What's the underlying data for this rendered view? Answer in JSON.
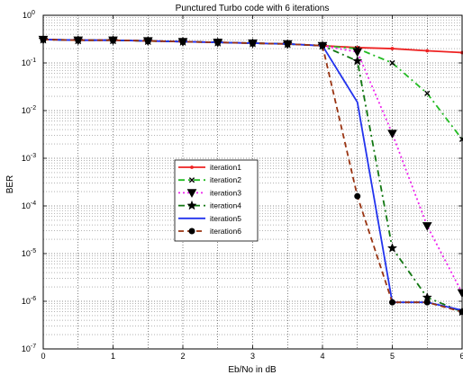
{
  "chart_data": {
    "type": "line",
    "title": "Punctured Turbo code with 6 iterations",
    "xlabel": "Eb/No in dB",
    "ylabel": "BER",
    "xlim": [
      0,
      6
    ],
    "ylim_log10": [
      -7,
      0
    ],
    "yscale": "log",
    "grid": true,
    "legend_position": "center",
    "x_ticks": [
      "0",
      "1",
      "2",
      "3",
      "4",
      "5",
      "6"
    ],
    "y_tick_exponents": [
      "0",
      "-1",
      "-2",
      "-3",
      "-4",
      "-5",
      "-6",
      "-7"
    ],
    "y_tick_base": "10",
    "series": [
      {
        "name": "iteration1",
        "color": "#ee2222",
        "dash": "",
        "marker": "dot",
        "x": [
          0,
          0.5,
          1,
          1.5,
          2,
          2.5,
          3,
          3.5,
          4,
          4.5,
          5,
          5.5,
          6
        ],
        "y": [
          0.31,
          0.3,
          0.3,
          0.29,
          0.28,
          0.27,
          0.26,
          0.25,
          0.23,
          0.21,
          0.2,
          0.18,
          0.165
        ]
      },
      {
        "name": "iteration2",
        "color": "#22bb22",
        "dash": "7,4,2,4",
        "marker": "x",
        "x": [
          0,
          0.5,
          1,
          1.5,
          2,
          2.5,
          3,
          3.5,
          4,
          4.5,
          5,
          5.5,
          6
        ],
        "y": [
          0.31,
          0.3,
          0.3,
          0.29,
          0.28,
          0.27,
          0.26,
          0.25,
          0.23,
          0.2,
          0.1,
          0.023,
          0.0025
        ]
      },
      {
        "name": "iteration3",
        "color": "#ee22ee",
        "dash": "2,3",
        "marker": "triangle",
        "x": [
          0,
          0.5,
          1,
          1.5,
          2,
          2.5,
          3,
          3.5,
          4,
          4.5,
          5,
          5.5,
          6
        ],
        "y": [
          0.31,
          0.3,
          0.3,
          0.29,
          0.28,
          0.27,
          0.26,
          0.25,
          0.23,
          0.17,
          0.0033,
          3.8e-05,
          1.5e-06
        ]
      },
      {
        "name": "iteration4",
        "color": "#117711",
        "dash": "7,4,2,4",
        "marker": "star",
        "x": [
          0,
          0.5,
          1,
          1.5,
          2,
          2.5,
          3,
          3.5,
          4,
          4.5,
          5,
          5.5,
          6
        ],
        "y": [
          0.31,
          0.3,
          0.3,
          0.29,
          0.28,
          0.27,
          0.26,
          0.25,
          0.23,
          0.11,
          1.3e-05,
          1.2e-06,
          6e-07
        ]
      },
      {
        "name": "iteration5",
        "color": "#2233ee",
        "dash": "",
        "marker": "none",
        "x": [
          0,
          0.5,
          1,
          1.5,
          2,
          2.5,
          3,
          3.5,
          4,
          4.5,
          5,
          5.5,
          6
        ],
        "y": [
          0.31,
          0.3,
          0.3,
          0.29,
          0.28,
          0.27,
          0.26,
          0.25,
          0.23,
          0.015,
          9.5e-07,
          9.5e-07,
          6.5e-07
        ]
      },
      {
        "name": "iteration6",
        "color": "#993311",
        "dash": "6,4",
        "marker": "circle",
        "x": [
          0,
          0.5,
          1,
          1.5,
          2,
          2.5,
          3,
          3.5,
          4,
          4.5,
          5,
          5.5,
          6
        ],
        "y": [
          0.31,
          0.3,
          0.3,
          0.29,
          0.28,
          0.27,
          0.26,
          0.25,
          0.23,
          0.00016,
          9.5e-07,
          9.5e-07,
          6e-07
        ]
      }
    ]
  }
}
